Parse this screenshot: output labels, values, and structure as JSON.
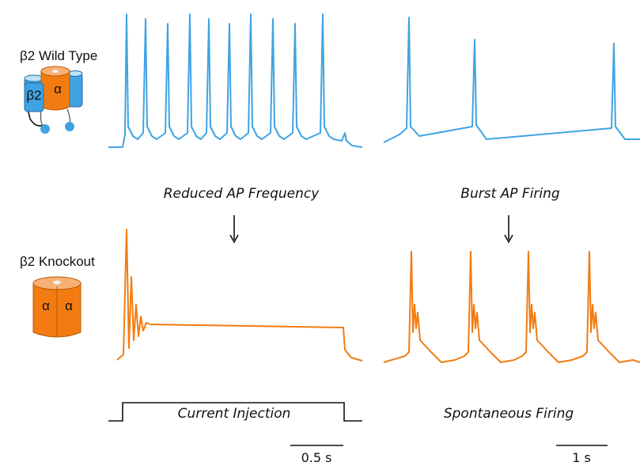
{
  "labels": {
    "wild_type": "β2 Wild Type",
    "knockout": "β2 Knockout"
  },
  "wt_icon": {
    "beta": "β2",
    "alpha": "α"
  },
  "ko_icon": {
    "alpha_left": "α",
    "alpha_right": "α"
  },
  "annotations": {
    "left": "Reduced AP Frequency",
    "right": "Burst AP Firing"
  },
  "stimulus": {
    "left": "Current Injection",
    "right": "Spontaneous Firing"
  },
  "scale_bars": {
    "left": "0.5 s",
    "right": "1 s"
  }
}
